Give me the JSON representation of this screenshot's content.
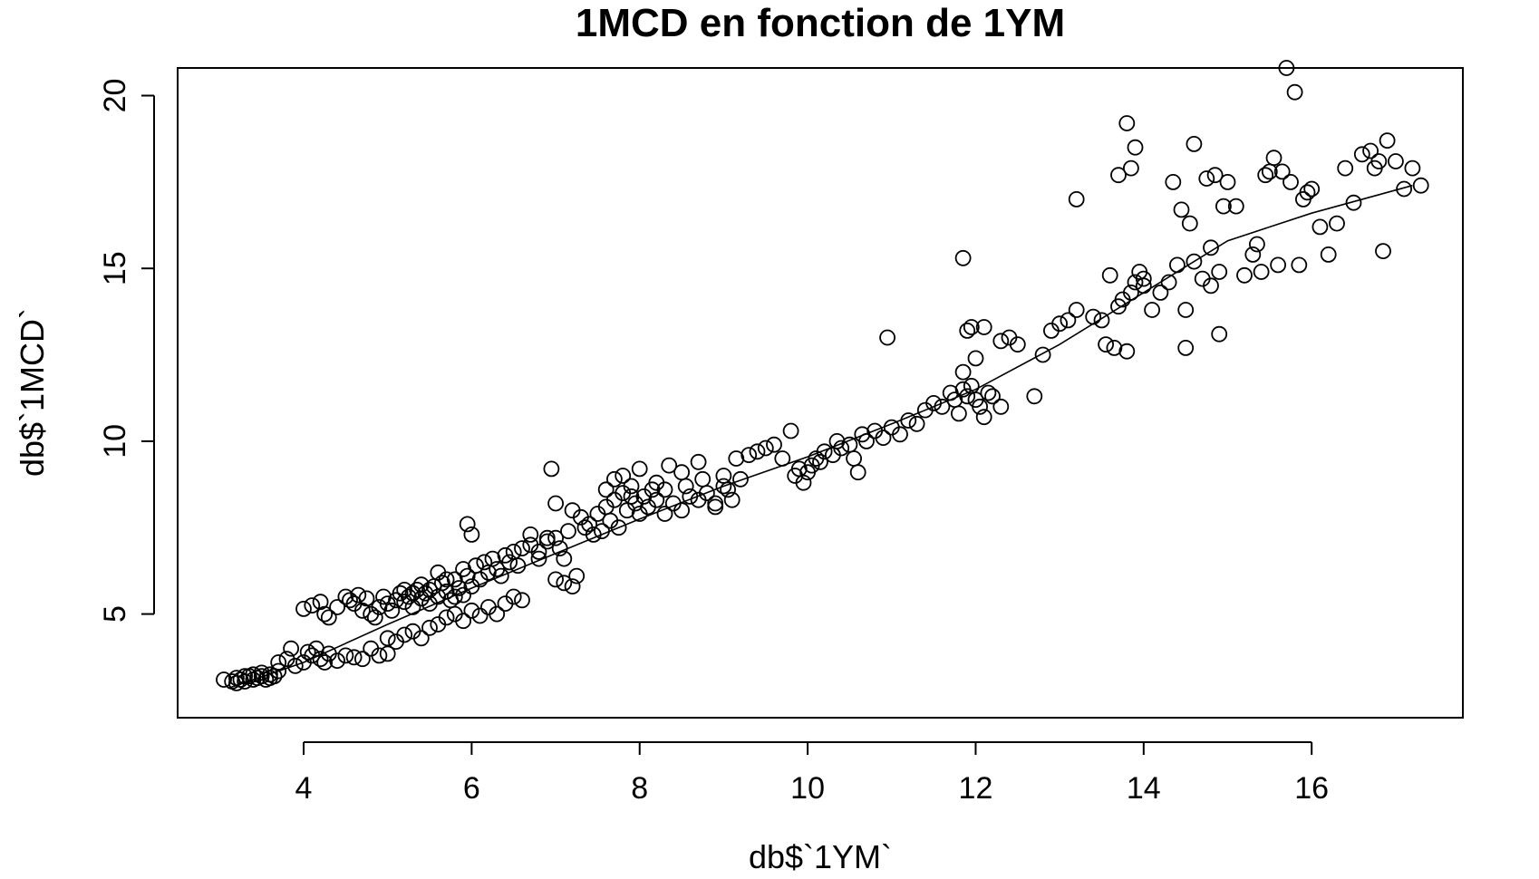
{
  "chart_data": {
    "type": "scatter",
    "title": "1MCD en fonction de 1YM",
    "xlabel": "db$`1YM`",
    "ylabel": "db$`1MCD`",
    "xlim": [
      2.5,
      17.8
    ],
    "ylim": [
      2,
      20.8
    ],
    "xticks": [
      4,
      6,
      8,
      10,
      12,
      14,
      16
    ],
    "yticks": [
      5,
      10,
      15,
      20
    ],
    "xtick_labels": [
      "4",
      "6",
      "8",
      "10",
      "12",
      "14",
      "16"
    ],
    "ytick_labels": [
      "5",
      "10",
      "15",
      "20"
    ],
    "grid": false,
    "legend": "none",
    "series": [
      {
        "marker": "open-circle",
        "color": "#000000",
        "points": [
          [
            3.05,
            3.1
          ],
          [
            3.15,
            3.05
          ],
          [
            3.2,
            3.15
          ],
          [
            3.25,
            3.1
          ],
          [
            3.3,
            3.05
          ],
          [
            3.35,
            3.2
          ],
          [
            3.4,
            3.1
          ],
          [
            3.45,
            3.15
          ],
          [
            3.5,
            3.2
          ],
          [
            3.55,
            3.1
          ],
          [
            3.6,
            3.25
          ],
          [
            3.65,
            3.2
          ],
          [
            3.7,
            3.35
          ],
          [
            3.3,
            3.2
          ],
          [
            3.4,
            3.25
          ],
          [
            3.5,
            3.3
          ],
          [
            3.2,
            3.0
          ],
          [
            3.6,
            3.15
          ],
          [
            3.7,
            3.6
          ],
          [
            3.8,
            3.7
          ],
          [
            3.85,
            4.0
          ],
          [
            3.9,
            3.5
          ],
          [
            4.0,
            3.6
          ],
          [
            4.05,
            3.9
          ],
          [
            4.1,
            3.8
          ],
          [
            4.15,
            4.0
          ],
          [
            4.2,
            3.7
          ],
          [
            4.25,
            3.6
          ],
          [
            4.3,
            3.85
          ],
          [
            4.4,
            3.65
          ],
          [
            4.5,
            3.8
          ],
          [
            4.6,
            3.75
          ],
          [
            4.7,
            3.7
          ],
          [
            4.8,
            4.0
          ],
          [
            4.9,
            3.8
          ],
          [
            5.0,
            3.85
          ],
          [
            4.0,
            5.15
          ],
          [
            4.1,
            5.25
          ],
          [
            4.2,
            5.35
          ],
          [
            4.25,
            5.0
          ],
          [
            4.3,
            4.9
          ],
          [
            4.4,
            5.2
          ],
          [
            4.5,
            5.5
          ],
          [
            4.55,
            5.4
          ],
          [
            4.6,
            5.3
          ],
          [
            4.65,
            5.55
          ],
          [
            4.7,
            5.1
          ],
          [
            4.75,
            5.45
          ],
          [
            4.8,
            5.0
          ],
          [
            4.85,
            4.9
          ],
          [
            4.9,
            5.2
          ],
          [
            4.95,
            5.5
          ],
          [
            5.0,
            5.3
          ],
          [
            5.05,
            5.1
          ],
          [
            5.1,
            5.4
          ],
          [
            5.15,
            5.6
          ],
          [
            5.2,
            5.35
          ],
          [
            5.25,
            5.5
          ],
          [
            5.3,
            5.2
          ],
          [
            5.35,
            5.7
          ],
          [
            5.4,
            5.45
          ],
          [
            5.45,
            5.6
          ],
          [
            5.5,
            5.3
          ],
          [
            5.55,
            5.8
          ],
          [
            5.6,
            5.5
          ],
          [
            5.65,
            5.9
          ],
          [
            5.7,
            5.65
          ],
          [
            5.75,
            5.4
          ],
          [
            5.8,
            6.0
          ],
          [
            5.85,
            5.75
          ],
          [
            5.9,
            5.55
          ],
          [
            5.95,
            6.1
          ],
          [
            5.2,
            5.7
          ],
          [
            5.3,
            5.6
          ],
          [
            5.4,
            5.85
          ],
          [
            5.5,
            5.7
          ],
          [
            5.6,
            6.2
          ],
          [
            5.7,
            6.0
          ],
          [
            5.8,
            5.5
          ],
          [
            5.9,
            6.3
          ],
          [
            6.0,
            5.8
          ],
          [
            6.05,
            6.4
          ],
          [
            6.1,
            6.0
          ],
          [
            6.15,
            6.5
          ],
          [
            6.2,
            6.2
          ],
          [
            6.25,
            6.6
          ],
          [
            6.3,
            6.3
          ],
          [
            6.35,
            6.1
          ],
          [
            6.4,
            6.7
          ],
          [
            6.45,
            6.5
          ],
          [
            6.5,
            6.8
          ],
          [
            6.55,
            6.4
          ],
          [
            5.0,
            4.3
          ],
          [
            5.1,
            4.2
          ],
          [
            5.2,
            4.4
          ],
          [
            5.3,
            4.5
          ],
          [
            5.4,
            4.3
          ],
          [
            5.5,
            4.6
          ],
          [
            5.6,
            4.7
          ],
          [
            5.7,
            4.9
          ],
          [
            5.8,
            5.0
          ],
          [
            5.9,
            4.8
          ],
          [
            6.0,
            5.1
          ],
          [
            6.1,
            4.95
          ],
          [
            6.2,
            5.2
          ],
          [
            6.3,
            5.0
          ],
          [
            6.4,
            5.3
          ],
          [
            6.5,
            5.5
          ],
          [
            6.6,
            5.4
          ],
          [
            5.95,
            7.6
          ],
          [
            6.0,
            7.3
          ],
          [
            6.6,
            6.9
          ],
          [
            6.7,
            7.0
          ],
          [
            6.8,
            6.8
          ],
          [
            6.9,
            7.1
          ],
          [
            7.0,
            7.2
          ],
          [
            7.05,
            6.9
          ],
          [
            7.1,
            6.6
          ],
          [
            7.15,
            7.4
          ],
          [
            6.7,
            7.3
          ],
          [
            6.8,
            6.6
          ],
          [
            6.9,
            7.2
          ],
          [
            7.0,
            6.0
          ],
          [
            7.1,
            5.9
          ],
          [
            7.2,
            5.8
          ],
          [
            7.25,
            6.1
          ],
          [
            6.95,
            9.2
          ],
          [
            7.0,
            8.2
          ],
          [
            7.2,
            8.0
          ],
          [
            7.3,
            7.8
          ],
          [
            7.35,
            7.5
          ],
          [
            7.4,
            7.6
          ],
          [
            7.45,
            7.3
          ],
          [
            7.5,
            7.9
          ],
          [
            7.55,
            7.4
          ],
          [
            7.6,
            8.1
          ],
          [
            7.65,
            7.7
          ],
          [
            7.7,
            8.3
          ],
          [
            7.75,
            7.5
          ],
          [
            7.8,
            8.5
          ],
          [
            7.85,
            8.0
          ],
          [
            7.9,
            8.7
          ],
          [
            7.95,
            8.2
          ],
          [
            8.0,
            7.9
          ],
          [
            8.05,
            8.4
          ],
          [
            8.1,
            8.1
          ],
          [
            8.15,
            8.6
          ],
          [
            8.2,
            8.3
          ],
          [
            7.6,
            8.6
          ],
          [
            7.7,
            8.9
          ],
          [
            7.8,
            9.0
          ],
          [
            7.9,
            8.4
          ],
          [
            8.0,
            9.2
          ],
          [
            8.2,
            8.8
          ],
          [
            8.3,
            8.6
          ],
          [
            8.35,
            9.3
          ],
          [
            8.4,
            8.2
          ],
          [
            8.5,
            9.1
          ],
          [
            8.55,
            8.7
          ],
          [
            8.6,
            8.4
          ],
          [
            8.7,
            9.4
          ],
          [
            8.75,
            8.9
          ],
          [
            8.8,
            8.5
          ],
          [
            8.9,
            8.2
          ],
          [
            9.0,
            9.0
          ],
          [
            9.05,
            8.6
          ],
          [
            9.1,
            8.3
          ],
          [
            9.15,
            9.5
          ],
          [
            8.3,
            7.9
          ],
          [
            8.5,
            8.0
          ],
          [
            8.7,
            8.3
          ],
          [
            8.9,
            8.1
          ],
          [
            9.0,
            8.7
          ],
          [
            9.2,
            8.9
          ],
          [
            9.3,
            9.6
          ],
          [
            9.4,
            9.7
          ],
          [
            9.5,
            9.8
          ],
          [
            9.6,
            9.9
          ],
          [
            9.7,
            9.5
          ],
          [
            9.8,
            10.3
          ],
          [
            9.85,
            9.0
          ],
          [
            9.9,
            9.2
          ],
          [
            9.95,
            8.8
          ],
          [
            10.0,
            9.1
          ],
          [
            10.05,
            9.3
          ],
          [
            10.1,
            9.5
          ],
          [
            10.15,
            9.4
          ],
          [
            10.2,
            9.7
          ],
          [
            10.3,
            9.6
          ],
          [
            10.35,
            10.0
          ],
          [
            10.4,
            9.8
          ],
          [
            10.5,
            9.9
          ],
          [
            10.55,
            9.5
          ],
          [
            10.6,
            9.1
          ],
          [
            10.65,
            10.2
          ],
          [
            10.7,
            10.0
          ],
          [
            10.8,
            10.3
          ],
          [
            10.9,
            10.1
          ],
          [
            11.0,
            10.4
          ],
          [
            11.1,
            10.2
          ],
          [
            11.2,
            10.6
          ],
          [
            11.3,
            10.5
          ],
          [
            10.95,
            13.0
          ],
          [
            11.4,
            10.9
          ],
          [
            11.5,
            11.1
          ],
          [
            11.6,
            11.0
          ],
          [
            11.7,
            11.4
          ],
          [
            11.75,
            11.2
          ],
          [
            11.8,
            10.8
          ],
          [
            11.85,
            11.5
          ],
          [
            11.9,
            11.3
          ],
          [
            11.95,
            11.6
          ],
          [
            12.0,
            11.2
          ],
          [
            12.05,
            11.0
          ],
          [
            12.1,
            10.7
          ],
          [
            12.15,
            11.4
          ],
          [
            12.2,
            11.3
          ],
          [
            12.3,
            11.0
          ],
          [
            11.85,
            12.0
          ],
          [
            11.9,
            13.2
          ],
          [
            11.95,
            13.3
          ],
          [
            12.0,
            12.4
          ],
          [
            12.1,
            13.3
          ],
          [
            11.85,
            15.3
          ],
          [
            12.3,
            12.9
          ],
          [
            12.4,
            13.0
          ],
          [
            12.5,
            12.8
          ],
          [
            12.7,
            11.3
          ],
          [
            12.8,
            12.5
          ],
          [
            12.9,
            13.2
          ],
          [
            13.0,
            13.4
          ],
          [
            13.1,
            13.5
          ],
          [
            13.2,
            13.8
          ],
          [
            13.2,
            17.0
          ],
          [
            13.4,
            13.6
          ],
          [
            13.5,
            13.5
          ],
          [
            13.55,
            12.8
          ],
          [
            13.6,
            14.8
          ],
          [
            13.65,
            12.7
          ],
          [
            13.7,
            13.9
          ],
          [
            13.75,
            14.1
          ],
          [
            13.8,
            12.6
          ],
          [
            13.85,
            14.3
          ],
          [
            13.9,
            14.6
          ],
          [
            13.95,
            14.9
          ],
          [
            14.0,
            14.5
          ],
          [
            14.1,
            13.8
          ],
          [
            14.2,
            14.3
          ],
          [
            13.7,
            17.7
          ],
          [
            13.8,
            19.2
          ],
          [
            13.85,
            17.9
          ],
          [
            13.9,
            18.5
          ],
          [
            14.0,
            14.7
          ],
          [
            14.3,
            14.6
          ],
          [
            14.35,
            17.5
          ],
          [
            14.4,
            15.1
          ],
          [
            14.45,
            16.7
          ],
          [
            14.5,
            13.8
          ],
          [
            14.5,
            12.7
          ],
          [
            14.55,
            16.3
          ],
          [
            14.6,
            18.6
          ],
          [
            14.7,
            14.7
          ],
          [
            14.75,
            17.6
          ],
          [
            14.8,
            15.6
          ],
          [
            14.85,
            17.7
          ],
          [
            14.9,
            13.1
          ],
          [
            14.95,
            16.8
          ],
          [
            15.0,
            17.5
          ],
          [
            14.6,
            15.2
          ],
          [
            14.8,
            14.5
          ],
          [
            14.9,
            14.9
          ],
          [
            15.1,
            16.8
          ],
          [
            15.2,
            14.8
          ],
          [
            15.3,
            15.4
          ],
          [
            15.35,
            15.7
          ],
          [
            15.4,
            14.9
          ],
          [
            15.45,
            17.7
          ],
          [
            15.5,
            17.8
          ],
          [
            15.55,
            18.2
          ],
          [
            15.6,
            15.1
          ],
          [
            15.65,
            17.8
          ],
          [
            15.7,
            20.8
          ],
          [
            15.75,
            17.5
          ],
          [
            15.8,
            20.1
          ],
          [
            15.85,
            15.1
          ],
          [
            15.9,
            17.0
          ],
          [
            15.95,
            17.2
          ],
          [
            16.0,
            17.3
          ],
          [
            16.1,
            16.2
          ],
          [
            16.2,
            15.4
          ],
          [
            16.3,
            16.3
          ],
          [
            16.4,
            17.9
          ],
          [
            16.5,
            16.9
          ],
          [
            16.6,
            18.3
          ],
          [
            16.7,
            18.4
          ],
          [
            16.75,
            17.9
          ],
          [
            16.8,
            18.1
          ],
          [
            16.85,
            15.5
          ],
          [
            16.9,
            18.7
          ],
          [
            17.0,
            18.1
          ],
          [
            17.1,
            17.3
          ],
          [
            17.2,
            17.9
          ],
          [
            17.3,
            17.4
          ]
        ]
      }
    ],
    "fit_line": [
      [
        3.1,
        2.85
      ],
      [
        4.0,
        3.6
      ],
      [
        5.0,
        4.7
      ],
      [
        6.0,
        5.75
      ],
      [
        7.0,
        6.75
      ],
      [
        8.0,
        7.75
      ],
      [
        9.0,
        8.7
      ],
      [
        10.0,
        9.55
      ],
      [
        11.0,
        10.5
      ],
      [
        12.0,
        11.5
      ],
      [
        13.0,
        12.8
      ],
      [
        14.0,
        14.3
      ],
      [
        15.0,
        15.8
      ],
      [
        16.0,
        16.6
      ],
      [
        17.2,
        17.4
      ]
    ]
  }
}
